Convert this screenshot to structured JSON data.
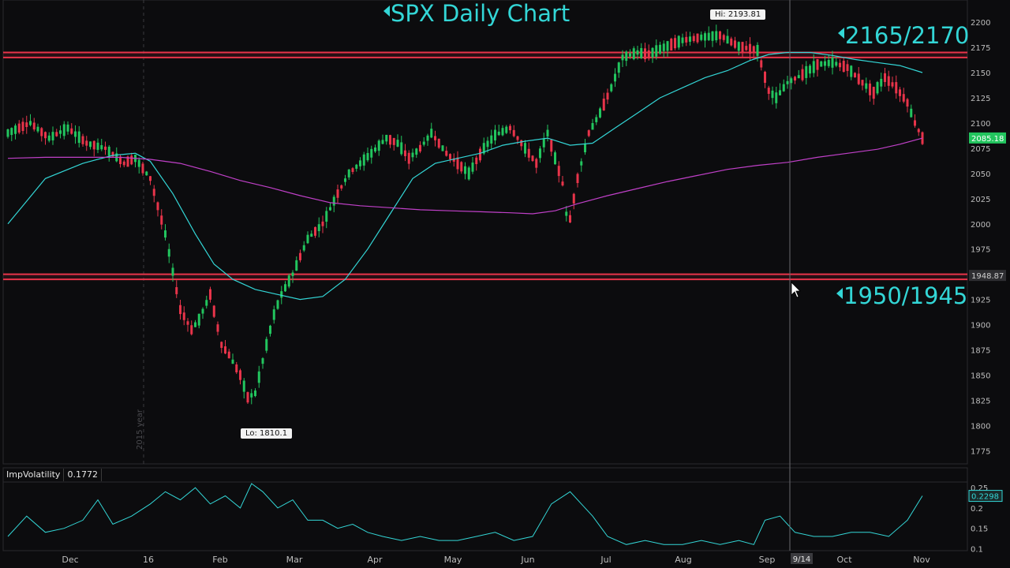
{
  "header": {
    "title": "SPX Daily Chart"
  },
  "zones": {
    "upper_label": "2165/2170",
    "lower_label": "1950/1945"
  },
  "annotations": {
    "high": "Hi: 2193.81",
    "low": "Lo: 1810.1"
  },
  "crosshair": {
    "date_label": "9/14",
    "price_label": "1948.87"
  },
  "last_price_label": "2085.18",
  "year_marker": "2015 year",
  "indicator": {
    "name": "ImpVolatility",
    "value": "0.1772",
    "last_label": "0.2298"
  },
  "colors": {
    "accent": "#33d6d6",
    "zone_line": "#e8344a",
    "ma_short": "#33d6d6",
    "ma_long": "#c040c8",
    "up": "#22c55e",
    "down": "#e8344a",
    "last_price_bg": "#22c55e"
  },
  "chart_data": [
    {
      "type": "candlestick",
      "title": "SPX Daily Chart",
      "x_tick_labels": [
        "Dec",
        "16",
        "Feb",
        "Mar",
        "Apr",
        "May",
        "Jun",
        "Jul",
        "Aug",
        "Sep",
        "Oct",
        "Nov"
      ],
      "y_tick_labels": [
        "2200",
        "2175",
        "2150",
        "2125",
        "2100",
        "2075",
        "2050",
        "2025",
        "2000",
        "1975",
        "1950",
        "1925",
        "1900",
        "1875",
        "1850",
        "1825",
        "1800",
        "1775"
      ],
      "ylim": [
        1762,
        2222
      ],
      "grid": false,
      "resistance_zone": [
        2165,
        2170
      ],
      "support_zone": [
        1945,
        1950
      ],
      "series": [
        {
          "values": [
            [
              0,
              2090
            ],
            [
              6,
              2100
            ],
            [
              11,
              2085
            ],
            [
              16,
              2095
            ],
            [
              21,
              2080
            ],
            [
              26,
              2075
            ],
            [
              31,
              2060
            ],
            [
              34,
              2065
            ],
            [
              38,
              2045
            ],
            [
              42,
              1990
            ],
            [
              46,
              1915
            ],
            [
              49,
              1895
            ],
            [
              51,
              1905
            ],
            [
              54,
              1930
            ],
            [
              57,
              1880
            ],
            [
              59,
              1870
            ],
            [
              62,
              1850
            ],
            [
              64,
              1828
            ],
            [
              66,
              1832
            ],
            [
              69,
              1880
            ],
            [
              71,
              1910
            ],
            [
              73,
              1930
            ],
            [
              76,
              1950
            ],
            [
              80,
              1985
            ],
            [
              84,
              2000
            ],
            [
              88,
              2030
            ],
            [
              91,
              2050
            ],
            [
              94,
              2060
            ],
            [
              97,
              2070
            ],
            [
              101,
              2085
            ],
            [
              104,
              2080
            ],
            [
              107,
              2065
            ],
            [
              110,
              2075
            ],
            [
              113,
              2090
            ],
            [
              117,
              2070
            ],
            [
              120,
              2060
            ],
            [
              123,
              2050
            ],
            [
              127,
              2075
            ],
            [
              130,
              2088
            ],
            [
              134,
              2095
            ],
            [
              137,
              2080
            ],
            [
              141,
              2060
            ],
            [
              144,
              2090
            ],
            [
              148,
              2040
            ],
            [
              149,
              2010
            ],
            [
              150,
              2005
            ],
            [
              152,
              2045
            ],
            [
              155,
              2090
            ],
            [
              158,
              2110
            ],
            [
              161,
              2135
            ],
            [
              164,
              2165
            ],
            [
              168,
              2170
            ],
            [
              171,
              2168
            ],
            [
              175,
              2175
            ],
            [
              180,
              2182
            ],
            [
              185,
              2185
            ],
            [
              190,
              2187
            ],
            [
              195,
              2176
            ],
            [
              200,
              2172
            ],
            [
              203,
              2132
            ],
            [
              205,
              2125
            ],
            [
              208,
              2140
            ],
            [
              212,
              2148
            ],
            [
              216,
              2158
            ],
            [
              220,
              2160
            ],
            [
              224,
              2155
            ],
            [
              228,
              2140
            ],
            [
              231,
              2130
            ],
            [
              234,
              2145
            ],
            [
              237,
              2135
            ],
            [
              240,
              2120
            ],
            [
              242,
              2100
            ],
            [
              244,
              2085
            ]
          ]
        }
      ]
    },
    {
      "type": "line",
      "series": [
        {
          "values": [
            [
              0,
              2000
            ],
            [
              10,
              2045
            ],
            [
              20,
              2060
            ],
            [
              28,
              2068
            ],
            [
              34,
              2070
            ],
            [
              38,
              2062
            ],
            [
              44,
              2030
            ],
            [
              50,
              1990
            ],
            [
              55,
              1960
            ],
            [
              60,
              1945
            ],
            [
              66,
              1935
            ],
            [
              72,
              1930
            ],
            [
              78,
              1925
            ],
            [
              84,
              1928
            ],
            [
              90,
              1945
            ],
            [
              96,
              1975
            ],
            [
              102,
              2010
            ],
            [
              108,
              2045
            ],
            [
              114,
              2060
            ],
            [
              120,
              2065
            ],
            [
              126,
              2070
            ],
            [
              132,
              2078
            ],
            [
              138,
              2082
            ],
            [
              144,
              2085
            ],
            [
              150,
              2078
            ],
            [
              156,
              2080
            ],
            [
              162,
              2095
            ],
            [
              168,
              2110
            ],
            [
              174,
              2125
            ],
            [
              180,
              2135
            ],
            [
              186,
              2145
            ],
            [
              192,
              2152
            ],
            [
              198,
              2162
            ],
            [
              203,
              2168
            ],
            [
              208,
              2170
            ],
            [
              214,
              2170
            ],
            [
              220,
              2167
            ],
            [
              226,
              2163
            ],
            [
              232,
              2160
            ],
            [
              238,
              2157
            ],
            [
              244,
              2150
            ]
          ]
        },
        {
          "values": [
            [
              0,
              2065
            ],
            [
              10,
              2066
            ],
            [
              20,
              2066
            ],
            [
              30,
              2066
            ],
            [
              38,
              2064
            ],
            [
              46,
              2060
            ],
            [
              54,
              2052
            ],
            [
              62,
              2043
            ],
            [
              70,
              2036
            ],
            [
              78,
              2028
            ],
            [
              86,
              2021
            ],
            [
              94,
              2018
            ],
            [
              102,
              2016
            ],
            [
              110,
              2014
            ],
            [
              118,
              2013
            ],
            [
              126,
              2012
            ],
            [
              134,
              2011
            ],
            [
              140,
              2010
            ],
            [
              146,
              2013
            ],
            [
              152,
              2020
            ],
            [
              160,
              2028
            ],
            [
              168,
              2035
            ],
            [
              176,
              2042
            ],
            [
              184,
              2048
            ],
            [
              192,
              2054
            ],
            [
              200,
              2058
            ],
            [
              208,
              2061
            ],
            [
              216,
              2066
            ],
            [
              224,
              2070
            ],
            [
              232,
              2074
            ],
            [
              238,
              2079
            ],
            [
              244,
              2085
            ]
          ]
        }
      ]
    },
    {
      "type": "line",
      "title": "ImpVolatility",
      "y_tick_labels": [
        "0.25",
        "0.2",
        "0.15",
        "0.1"
      ],
      "ylim": [
        0.095,
        0.262
      ],
      "series": [
        {
          "name": "ImpVolatility",
          "values": [
            [
              0,
              0.13
            ],
            [
              5,
              0.18
            ],
            [
              10,
              0.14
            ],
            [
              15,
              0.15
            ],
            [
              20,
              0.17
            ],
            [
              24,
              0.22
            ],
            [
              28,
              0.16
            ],
            [
              33,
              0.18
            ],
            [
              38,
              0.21
            ],
            [
              42,
              0.24
            ],
            [
              46,
              0.22
            ],
            [
              50,
              0.25
            ],
            [
              54,
              0.21
            ],
            [
              58,
              0.23
            ],
            [
              62,
              0.2
            ],
            [
              65,
              0.26
            ],
            [
              68,
              0.24
            ],
            [
              72,
              0.2
            ],
            [
              76,
              0.22
            ],
            [
              80,
              0.17
            ],
            [
              84,
              0.17
            ],
            [
              88,
              0.15
            ],
            [
              92,
              0.16
            ],
            [
              96,
              0.14
            ],
            [
              100,
              0.13
            ],
            [
              105,
              0.12
            ],
            [
              110,
              0.13
            ],
            [
              115,
              0.12
            ],
            [
              120,
              0.12
            ],
            [
              125,
              0.13
            ],
            [
              130,
              0.14
            ],
            [
              135,
              0.12
            ],
            [
              140,
              0.13
            ],
            [
              145,
              0.21
            ],
            [
              150,
              0.24
            ],
            [
              153,
              0.21
            ],
            [
              156,
              0.18
            ],
            [
              160,
              0.13
            ],
            [
              165,
              0.11
            ],
            [
              170,
              0.12
            ],
            [
              175,
              0.11
            ],
            [
              180,
              0.11
            ],
            [
              185,
              0.12
            ],
            [
              190,
              0.11
            ],
            [
              195,
              0.12
            ],
            [
              199,
              0.11
            ],
            [
              202,
              0.17
            ],
            [
              206,
              0.18
            ],
            [
              210,
              0.14
            ],
            [
              215,
              0.13
            ],
            [
              220,
              0.13
            ],
            [
              225,
              0.14
            ],
            [
              230,
              0.14
            ],
            [
              235,
              0.13
            ],
            [
              240,
              0.17
            ],
            [
              244,
              0.23
            ]
          ]
        }
      ]
    }
  ]
}
